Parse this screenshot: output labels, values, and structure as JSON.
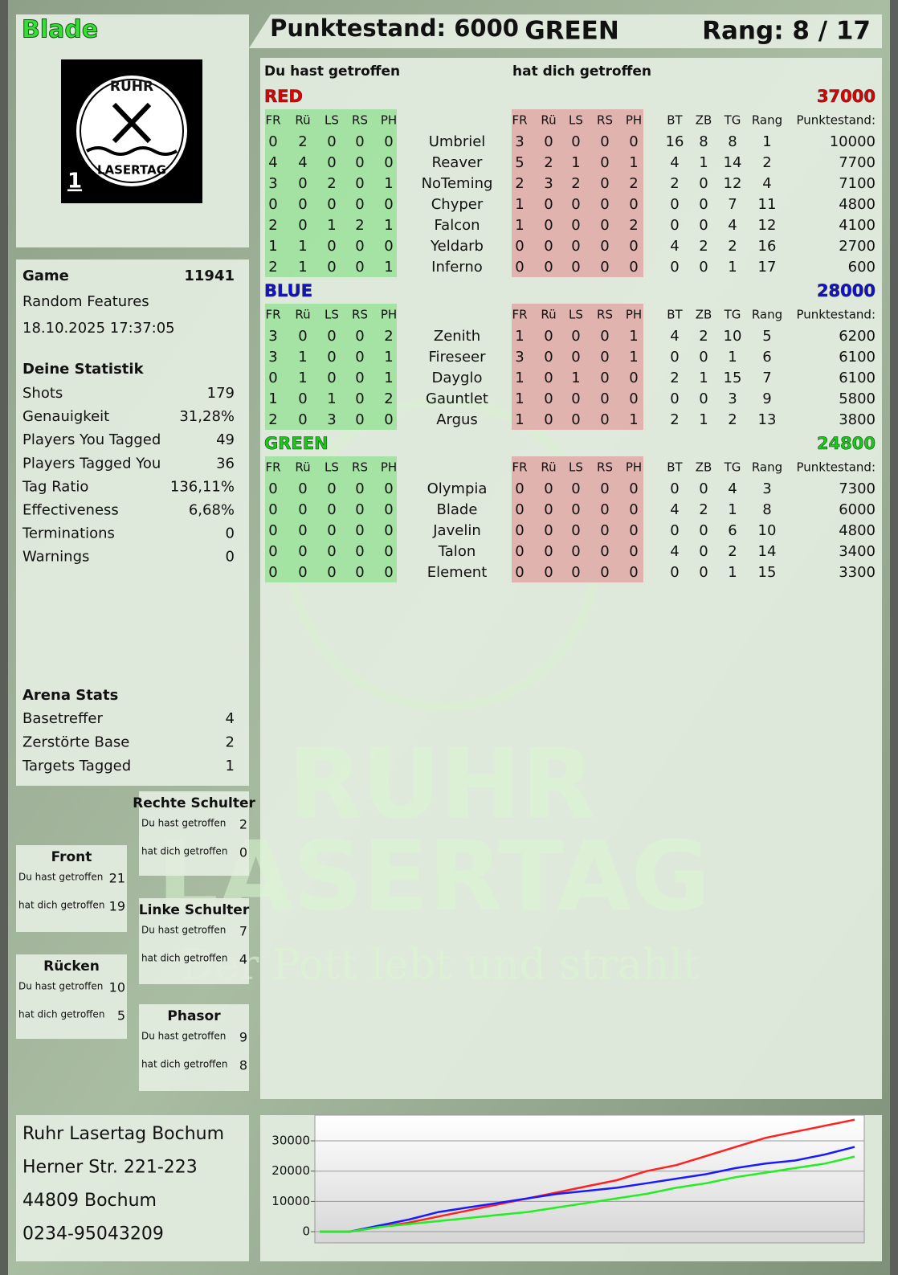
{
  "header": {
    "player": "Blade",
    "score": "Punktestand: 6000",
    "team": "GREEN",
    "rank": "Rang: 8 / 17"
  },
  "logo": {
    "top": "RUHR",
    "bottom": "LASERTAG",
    "number": "1"
  },
  "watermark": {
    "line1": "RUHR",
    "line2": "LASERTAG",
    "slogan": "Der Pott lebt und strahlt"
  },
  "game": {
    "label": "Game",
    "id": "11941",
    "mode": "Random Features",
    "date": "18.10.2025 17:37:05"
  },
  "stats": {
    "title": "Deine Statistik",
    "rows": [
      [
        "Shots",
        "179"
      ],
      [
        "Genauigkeit",
        "31,28%"
      ],
      [
        "Players You Tagged",
        "49"
      ],
      [
        "Players Tagged You",
        "36"
      ],
      [
        "Tag Ratio",
        "136,11%"
      ],
      [
        "Effectiveness",
        "6,68%"
      ],
      [
        "Terminations",
        "0"
      ],
      [
        "Warnings",
        "0"
      ]
    ]
  },
  "arena": {
    "title": "Arena Stats",
    "rows": [
      [
        "Basetreffer",
        "4"
      ],
      [
        "Zerstörte Base",
        "2"
      ],
      [
        "Targets Tagged",
        "1"
      ]
    ]
  },
  "zones": [
    {
      "title": "Rechte Schulter",
      "rows": [
        [
          "Du hast getroffen",
          "2"
        ],
        [
          "hat dich getroffen",
          "0"
        ]
      ]
    },
    {
      "title": "Front",
      "rows": [
        [
          "Du hast getroffen",
          "21"
        ],
        [
          "hat dich getroffen",
          "19"
        ]
      ]
    },
    {
      "title": "Linke Schulter",
      "rows": [
        [
          "Du hast getroffen",
          "7"
        ],
        [
          "hat dich getroffen",
          "4"
        ]
      ]
    },
    {
      "title": "Rücken",
      "rows": [
        [
          "Du hast getroffen",
          "10"
        ],
        [
          "hat dich getroffen",
          "5"
        ]
      ]
    },
    {
      "title": "Phasor",
      "rows": [
        [
          "Du hast getroffen",
          "9"
        ],
        [
          "hat dich getroffen",
          "8"
        ]
      ]
    }
  ],
  "address": [
    "Ruhr Lasertag Bochum",
    "Herner Str. 221-223",
    "44809 Bochum",
    "0234-95043209"
  ],
  "scoreboard": {
    "heading_given": "Du hast getroffen",
    "heading_taken": "hat dich getroffen",
    "cols_given": [
      "FR",
      "Rü",
      "LS",
      "RS",
      "PH"
    ],
    "cols_taken": [
      "FR",
      "Rü",
      "LS",
      "RS",
      "PH"
    ],
    "cols_extra": [
      "BT",
      "ZB",
      "TG",
      "Rang",
      "Punktestand:"
    ],
    "teams": [
      {
        "name": "RED",
        "color": "#e00000",
        "total": 37000,
        "players": [
          {
            "name": "Umbriel",
            "given": [
              0,
              2,
              0,
              0,
              0
            ],
            "taken": [
              3,
              0,
              0,
              0,
              0
            ],
            "extra": [
              16,
              8,
              8,
              1,
              10000
            ]
          },
          {
            "name": "Reaver",
            "given": [
              4,
              4,
              0,
              0,
              0
            ],
            "taken": [
              5,
              2,
              1,
              0,
              1
            ],
            "extra": [
              4,
              1,
              14,
              2,
              7700
            ]
          },
          {
            "name": "NoTeming",
            "given": [
              3,
              0,
              2,
              0,
              1
            ],
            "taken": [
              2,
              3,
              2,
              0,
              2
            ],
            "extra": [
              2,
              0,
              12,
              4,
              7100
            ]
          },
          {
            "name": "Chyper",
            "given": [
              0,
              0,
              0,
              0,
              0
            ],
            "taken": [
              1,
              0,
              0,
              0,
              0
            ],
            "extra": [
              0,
              0,
              7,
              11,
              4800
            ]
          },
          {
            "name": "Falcon",
            "given": [
              2,
              0,
              1,
              2,
              1
            ],
            "taken": [
              1,
              0,
              0,
              0,
              2
            ],
            "extra": [
              0,
              0,
              4,
              12,
              4100
            ]
          },
          {
            "name": "Yeldarb",
            "given": [
              1,
              1,
              0,
              0,
              0
            ],
            "taken": [
              0,
              0,
              0,
              0,
              0
            ],
            "extra": [
              4,
              2,
              2,
              16,
              2700
            ]
          },
          {
            "name": "Inferno",
            "given": [
              2,
              1,
              0,
              0,
              1
            ],
            "taken": [
              0,
              0,
              0,
              0,
              0
            ],
            "extra": [
              0,
              0,
              1,
              17,
              600
            ]
          }
        ]
      },
      {
        "name": "BLUE",
        "color": "#1010d0",
        "total": 28000,
        "players": [
          {
            "name": "Zenith",
            "given": [
              3,
              0,
              0,
              0,
              2
            ],
            "taken": [
              1,
              0,
              0,
              0,
              1
            ],
            "extra": [
              4,
              2,
              10,
              5,
              6200
            ]
          },
          {
            "name": "Fireseer",
            "given": [
              3,
              1,
              0,
              0,
              1
            ],
            "taken": [
              3,
              0,
              0,
              0,
              1
            ],
            "extra": [
              0,
              0,
              1,
              6,
              6100
            ]
          },
          {
            "name": "Dayglo",
            "given": [
              0,
              1,
              0,
              0,
              1
            ],
            "taken": [
              1,
              0,
              1,
              0,
              0
            ],
            "extra": [
              2,
              1,
              15,
              7,
              6100
            ]
          },
          {
            "name": "Gauntlet",
            "given": [
              1,
              0,
              1,
              0,
              2
            ],
            "taken": [
              1,
              0,
              0,
              0,
              0
            ],
            "extra": [
              0,
              0,
              3,
              9,
              5800
            ]
          },
          {
            "name": "Argus",
            "given": [
              2,
              0,
              3,
              0,
              0
            ],
            "taken": [
              1,
              0,
              0,
              0,
              1
            ],
            "extra": [
              2,
              1,
              2,
              13,
              3800
            ]
          }
        ]
      },
      {
        "name": "GREEN",
        "color": "#10d010",
        "total": 24800,
        "players": [
          {
            "name": "Olympia",
            "given": [
              0,
              0,
              0,
              0,
              0
            ],
            "taken": [
              0,
              0,
              0,
              0,
              0
            ],
            "extra": [
              0,
              0,
              4,
              3,
              7300
            ]
          },
          {
            "name": "Blade",
            "given": [
              0,
              0,
              0,
              0,
              0
            ],
            "taken": [
              0,
              0,
              0,
              0,
              0
            ],
            "extra": [
              4,
              2,
              1,
              8,
              6000
            ]
          },
          {
            "name": "Javelin",
            "given": [
              0,
              0,
              0,
              0,
              0
            ],
            "taken": [
              0,
              0,
              0,
              0,
              0
            ],
            "extra": [
              0,
              0,
              6,
              10,
              4800
            ]
          },
          {
            "name": "Talon",
            "given": [
              0,
              0,
              0,
              0,
              0
            ],
            "taken": [
              0,
              0,
              0,
              0,
              0
            ],
            "extra": [
              4,
              0,
              2,
              14,
              3400
            ]
          },
          {
            "name": "Element",
            "given": [
              0,
              0,
              0,
              0,
              0
            ],
            "taken": [
              0,
              0,
              0,
              0,
              0
            ],
            "extra": [
              0,
              0,
              1,
              15,
              3300
            ]
          }
        ]
      }
    ]
  },
  "chart_data": {
    "type": "line",
    "ylim": [
      -3700,
      38500
    ],
    "yticks": [
      0,
      10000,
      20000,
      30000
    ],
    "grid": true,
    "series": [
      {
        "color": "#ff2020",
        "values": [
          0,
          0,
          1500,
          3000,
          5000,
          7000,
          9000,
          11000,
          13000,
          15000,
          17000,
          20000,
          22000,
          25000,
          28000,
          31000,
          33000,
          35000,
          37000
        ]
      },
      {
        "color": "#1a1aff",
        "values": [
          0,
          0,
          2000,
          4000,
          6500,
          8000,
          9500,
          11000,
          12500,
          13500,
          14500,
          16000,
          17500,
          19000,
          21000,
          22500,
          23500,
          25500,
          28000
        ]
      },
      {
        "color": "#22ee22",
        "values": [
          0,
          0,
          1500,
          2500,
          3500,
          4500,
          5500,
          6500,
          8000,
          9500,
          11000,
          12500,
          14500,
          16000,
          18000,
          19500,
          21000,
          22500,
          24800
        ]
      }
    ]
  }
}
